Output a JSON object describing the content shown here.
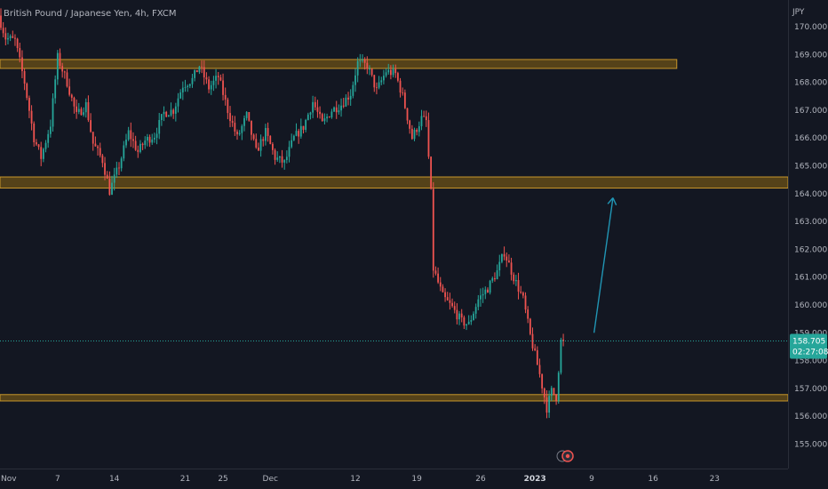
{
  "chart_data": {
    "type": "candlestick",
    "title": "British Pound / Japanese Yen, 4h, FXCM",
    "currency_label": "JPY",
    "y_range": [
      154.3,
      170.6
    ],
    "y_ticks": [
      "155.000",
      "156.000",
      "157.000",
      "158.000",
      "159.000",
      "160.000",
      "161.000",
      "162.000",
      "163.000",
      "164.000",
      "165.000",
      "166.000",
      "167.000",
      "168.000",
      "169.000",
      "170.000"
    ],
    "x_ticks": [
      {
        "label": "Nov",
        "index": 0
      },
      {
        "label": "7",
        "index": 24
      },
      {
        "label": "14",
        "index": 48
      },
      {
        "label": "21",
        "index": 78
      },
      {
        "label": "25",
        "index": 94
      },
      {
        "label": "Dec",
        "index": 114
      },
      {
        "label": "12",
        "index": 150
      },
      {
        "label": "19",
        "index": 176
      },
      {
        "label": "26",
        "index": 203
      },
      {
        "label": "2023",
        "index": 226,
        "bold": true
      },
      {
        "label": "9",
        "index": 250
      },
      {
        "label": "16",
        "index": 276
      },
      {
        "label": "23",
        "index": 302
      }
    ],
    "last_price": {
      "value": "158.705",
      "countdown": "02:27:08",
      "price": 158.705
    },
    "zones": [
      {
        "low": 168.5,
        "high": 168.82,
        "end_index": 286
      },
      {
        "low": 164.2,
        "high": 164.6,
        "end_index": 334
      },
      {
        "low": 156.55,
        "high": 156.78,
        "end_index": 334
      }
    ],
    "arrow": {
      "from_index": 251,
      "from_price": 159.0,
      "to_index": 259,
      "to_price": 163.85
    },
    "anchors": [
      [
        0,
        170.4
      ],
      [
        3,
        169.6
      ],
      [
        7,
        169.5
      ],
      [
        11,
        168.0
      ],
      [
        15,
        166.0
      ],
      [
        18,
        165.3
      ],
      [
        22,
        166.5
      ],
      [
        25,
        168.9
      ],
      [
        29,
        168.0
      ],
      [
        33,
        166.8
      ],
      [
        37,
        167.2
      ],
      [
        40,
        165.8
      ],
      [
        44,
        165.2
      ],
      [
        47,
        164.1
      ],
      [
        51,
        165.0
      ],
      [
        55,
        166.2
      ],
      [
        59,
        165.5
      ],
      [
        62,
        165.9
      ],
      [
        66,
        166.1
      ],
      [
        70,
        166.9
      ],
      [
        74,
        167.0
      ],
      [
        78,
        167.9
      ],
      [
        82,
        168.1
      ],
      [
        85,
        168.6
      ],
      [
        89,
        167.8
      ],
      [
        93,
        168.2
      ],
      [
        97,
        167.0
      ],
      [
        101,
        166.0
      ],
      [
        105,
        166.8
      ],
      [
        109,
        165.5
      ],
      [
        113,
        166.2
      ],
      [
        117,
        165.3
      ],
      [
        121,
        165.1
      ],
      [
        125,
        166.0
      ],
      [
        129,
        166.4
      ],
      [
        133,
        167.3
      ],
      [
        137,
        166.5
      ],
      [
        141,
        167.0
      ],
      [
        145,
        167.2
      ],
      [
        149,
        167.6
      ],
      [
        152,
        168.7
      ],
      [
        156,
        168.6
      ],
      [
        160,
        167.7
      ],
      [
        164,
        168.4
      ],
      [
        168,
        168.3
      ],
      [
        171,
        167.5
      ],
      [
        175,
        166.0
      ],
      [
        179,
        166.7
      ],
      [
        181,
        166.6
      ],
      [
        183,
        164.0
      ],
      [
        184,
        161.3
      ],
      [
        188,
        160.3
      ],
      [
        192,
        159.9
      ],
      [
        196,
        159.4
      ],
      [
        199,
        159.3
      ],
      [
        203,
        160.2
      ],
      [
        207,
        160.6
      ],
      [
        211,
        161.2
      ],
      [
        214,
        161.9
      ],
      [
        218,
        161.0
      ],
      [
        222,
        160.2
      ],
      [
        225,
        158.9
      ],
      [
        229,
        157.5
      ],
      [
        232,
        156.3
      ],
      [
        234,
        156.9
      ],
      [
        236,
        156.7
      ],
      [
        238,
        158.7
      ]
    ]
  },
  "colors": {
    "up": "#26a69a",
    "down": "#ef5350",
    "zone_fill": "#5d4718",
    "zone_stroke": "#c8962b",
    "arrow": "#2196b5",
    "price_tag": "#26a69a",
    "background": "#131722"
  }
}
